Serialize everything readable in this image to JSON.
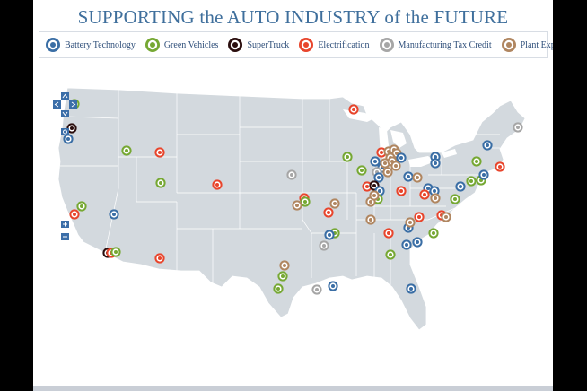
{
  "title": "SUPPORTING the AUTO INDUSTRY of the FUTURE",
  "legend": [
    {
      "label": "Battery Technology",
      "color": "#3a6ea5",
      "icon": "battery-technology-marker-icon"
    },
    {
      "label": "Green Vehicles",
      "color": "#76a833",
      "icon": "green-vehicles-marker-icon"
    },
    {
      "label": "SuperTruck",
      "color": "#2a0d0d",
      "icon": "supertruck-marker-icon"
    },
    {
      "label": "Electrification",
      "color": "#e8452c",
      "icon": "electrification-marker-icon"
    },
    {
      "label": "Manufacturing Tax Credit",
      "color": "#a6a6a6",
      "icon": "manufacturing-tax-credit-marker-icon"
    },
    {
      "label": "Plant Expansion",
      "color": "#b08660",
      "icon": "plant-expansion-marker-icon"
    }
  ],
  "map_controls": {
    "pan_up": "^",
    "pan_left": "<",
    "pan_right": ">",
    "pan_down": "v",
    "reset": "o",
    "zoom_in": "+",
    "zoom_out": "-"
  }
}
